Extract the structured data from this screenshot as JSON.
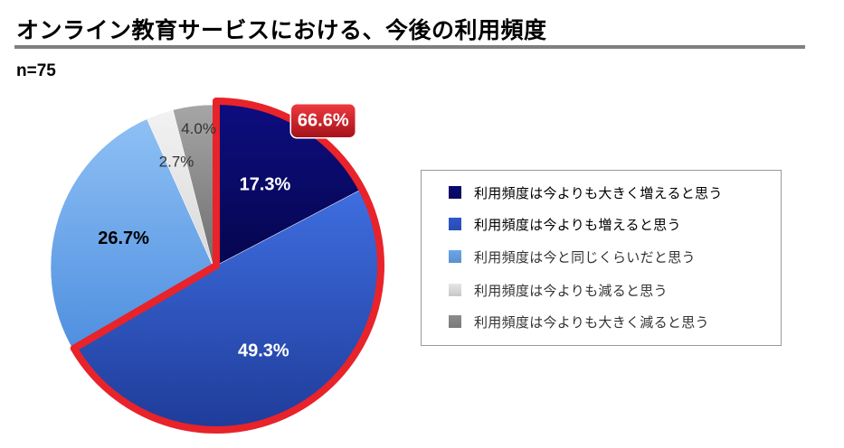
{
  "title": "オンライン教育サービスにおける、今後の利用頻度",
  "sample_size": "n=75",
  "chart_data": {
    "type": "pie",
    "categories": [
      "利用頻度は今よりも大きく増えると思う",
      "利用頻度は今よりも増えると思う",
      "利用頻度は今と同じくらいだと思う",
      "利用頻度は今よりも減ると思う",
      "利用頻度は今よりも大きく減ると思う"
    ],
    "values": [
      17.3,
      49.3,
      26.7,
      2.7,
      4.0
    ],
    "value_labels": [
      "17.3%",
      "49.3%",
      "26.7%",
      "2.7%",
      "4.0%"
    ],
    "colors": [
      "#0a0a6e",
      "#2f57cc",
      "#6aa6ea",
      "#e6e6e6",
      "#8c8c8c"
    ],
    "highlight": {
      "label": "66.6%",
      "covers_slices": [
        0,
        1
      ],
      "color": "#e8232a"
    },
    "legend_placement": "right",
    "start_angle": "12 o'clock",
    "direction": "clockwise"
  }
}
